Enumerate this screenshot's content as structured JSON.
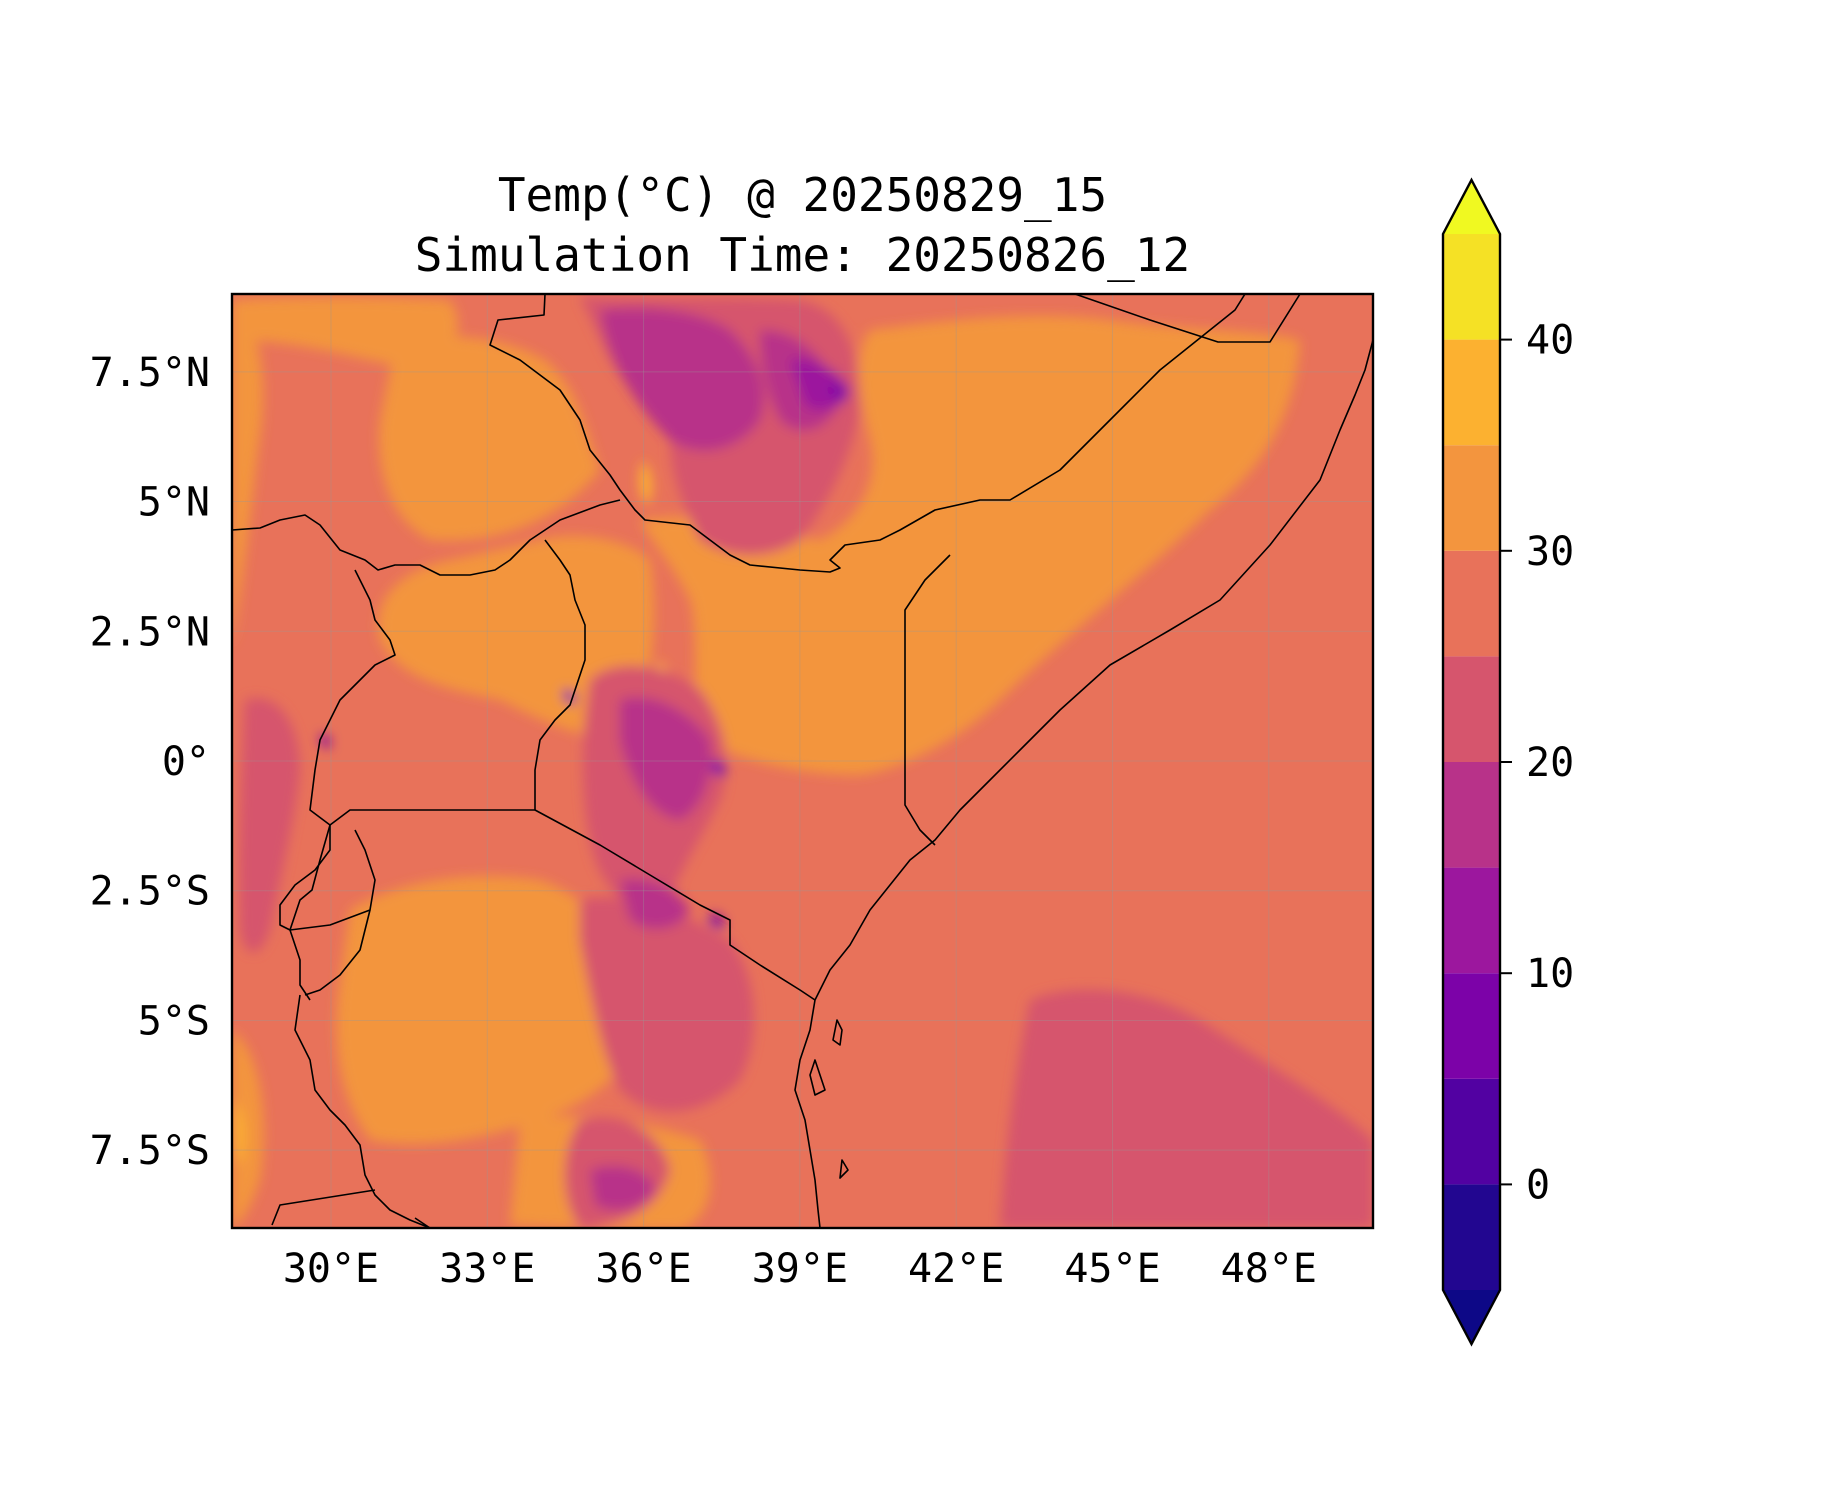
{
  "title": {
    "line1": "Temp(°C) @ 20250829_15",
    "line2": "Simulation Time: 20250826_12"
  },
  "map": {
    "lon_range": [
      28.1,
      50.0
    ],
    "lat_range": [
      -9.0,
      9.0
    ],
    "x_ticks": [
      {
        "value": 30,
        "label": "30°E"
      },
      {
        "value": 33,
        "label": "33°E"
      },
      {
        "value": 36,
        "label": "36°E"
      },
      {
        "value": 39,
        "label": "39°E"
      },
      {
        "value": 42,
        "label": "42°E"
      },
      {
        "value": 45,
        "label": "45°E"
      },
      {
        "value": 48,
        "label": "48°E"
      }
    ],
    "y_ticks": [
      {
        "value": 7.5,
        "label": "7.5°N"
      },
      {
        "value": 5,
        "label": "5°N"
      },
      {
        "value": 2.5,
        "label": "2.5°N"
      },
      {
        "value": 0,
        "label": "0°"
      },
      {
        "value": -2.5,
        "label": "2.5°S"
      },
      {
        "value": -5,
        "label": "5°S"
      },
      {
        "value": -7.5,
        "label": "7.5°S"
      }
    ],
    "dominant_fill_color": "#e8725a",
    "gridlines": true
  },
  "colorbar": {
    "ticks": [
      {
        "value": 0,
        "label": "0"
      },
      {
        "value": 10,
        "label": "10"
      },
      {
        "value": 20,
        "label": "20"
      },
      {
        "value": 30,
        "label": "30"
      },
      {
        "value": 40,
        "label": "40"
      }
    ],
    "extend": "both",
    "levels": [
      {
        "from": null,
        "to": -5,
        "color": "#0d0887"
      },
      {
        "from": -5,
        "to": 0,
        "color": "#220690"
      },
      {
        "from": 0,
        "to": 5,
        "color": "#5201a2"
      },
      {
        "from": 5,
        "to": 10,
        "color": "#7c02a8"
      },
      {
        "from": 10,
        "to": 15,
        "color": "#9c179e"
      },
      {
        "from": 15,
        "to": 20,
        "color": "#b83289"
      },
      {
        "from": 20,
        "to": 25,
        "color": "#d6556d"
      },
      {
        "from": 25,
        "to": 30,
        "color": "#e8725a"
      },
      {
        "from": 30,
        "to": 35,
        "color": "#f3953e"
      },
      {
        "from": 35,
        "to": 40,
        "color": "#fcb130"
      },
      {
        "from": 40,
        "to": 45,
        "color": "#f5e125"
      },
      {
        "from": 45,
        "to": null,
        "color": "#f0f921"
      }
    ]
  }
}
